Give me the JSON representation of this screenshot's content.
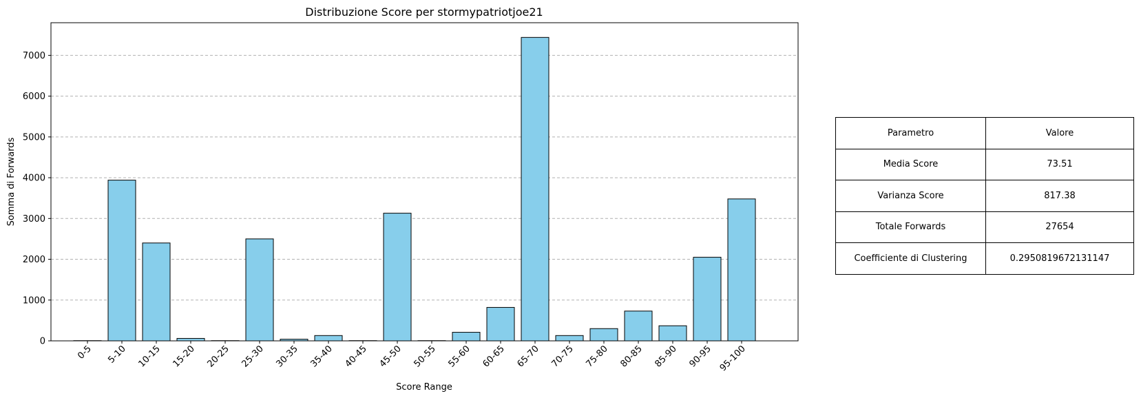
{
  "chart_data": {
    "type": "bar",
    "title": "Distribuzione Score per stormypatriotjoe21",
    "xlabel": "Score Range",
    "ylabel": "Somma di Forwards",
    "categories": [
      "0-5",
      "5-10",
      "10-15",
      "15-20",
      "20-25",
      "25-30",
      "30-35",
      "35-40",
      "40-45",
      "45-50",
      "50-55",
      "55-60",
      "60-65",
      "65-70",
      "70-75",
      "75-80",
      "80-85",
      "85-90",
      "90-95",
      "95-100"
    ],
    "values": [
      5,
      3940,
      2400,
      60,
      5,
      2500,
      40,
      130,
      5,
      3130,
      5,
      210,
      820,
      7440,
      130,
      300,
      730,
      370,
      2050,
      3480
    ],
    "ylim": [
      0,
      7800
    ],
    "yticks": [
      0,
      1000,
      2000,
      3000,
      4000,
      5000,
      6000,
      7000
    ],
    "grid": "y-dashed",
    "bar_color": "#87CEEB",
    "edge_color": "#000000"
  },
  "table": {
    "header": [
      "Parametro",
      "Valore"
    ],
    "rows": [
      [
        "Media Score",
        "73.51"
      ],
      [
        "Varianza Score",
        "817.38"
      ],
      [
        "Totale Forwards",
        "27654"
      ],
      [
        "Coefficiente di Clustering",
        "0.2950819672131147"
      ]
    ]
  }
}
